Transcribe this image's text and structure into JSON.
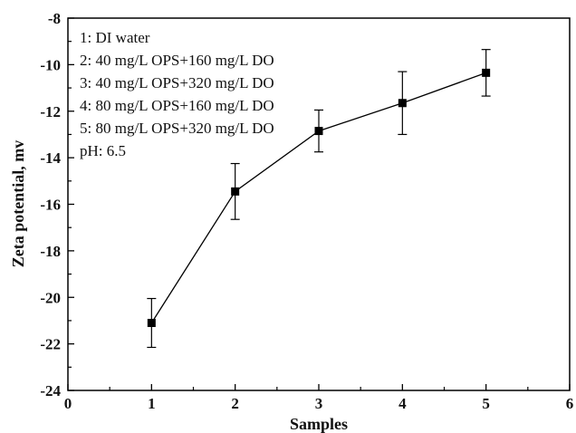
{
  "chart_data": {
    "type": "line",
    "xlabel": "Samples",
    "ylabel": "Zeta potential, mv",
    "xlim": [
      0,
      6
    ],
    "ylim": [
      -24,
      -8
    ],
    "x_ticks": [
      0,
      1,
      2,
      3,
      4,
      5,
      6
    ],
    "y_ticks": [
      -24,
      -22,
      -20,
      -18,
      -16,
      -14,
      -12,
      -10,
      -8
    ],
    "grid": false,
    "legend": "none",
    "series": [
      {
        "x": [
          1,
          2,
          3,
          4,
          5
        ],
        "y": [
          -21.1,
          -15.45,
          -12.85,
          -11.65,
          -10.35
        ],
        "error": [
          1.05,
          1.2,
          0.9,
          1.35,
          1.0
        ],
        "marker": "square",
        "color": "#000000"
      }
    ],
    "annotations": [
      "1: DI water",
      "2: 40 mg/L OPS+160 mg/L DO",
      "3: 40 mg/L OPS+320 mg/L DO",
      "4: 80 mg/L OPS+160 mg/L DO",
      "5: 80 mg/L OPS+320 mg/L DO",
      "pH: 6.5"
    ]
  }
}
